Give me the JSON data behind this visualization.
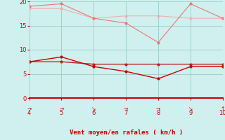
{
  "x": [
    4,
    5,
    6,
    7,
    8,
    9,
    10
  ],
  "line_rafales_vary": [
    19.0,
    19.5,
    16.5,
    15.5,
    11.5,
    19.5,
    16.5
  ],
  "line_rafales_flat": [
    18.5,
    18.5,
    16.5,
    17.0,
    17.0,
    16.5,
    16.5
  ],
  "line_moyen_vary": [
    7.5,
    8.5,
    6.5,
    5.5,
    4.0,
    6.5,
    6.5
  ],
  "line_moyen_flat": [
    7.5,
    7.5,
    7.0,
    7.0,
    7.0,
    7.0,
    7.0
  ],
  "color_rafales_vary": "#e87878",
  "color_rafales_flat": "#f0b0b0",
  "color_moyen_vary": "#cc0000",
  "color_moyen_flat": "#bb2222",
  "bg_color": "#cff0ee",
  "grid_color": "#99cccc",
  "axis_color": "#cc0000",
  "xlabel": "Vent moyen/en rafales ( km/h )",
  "xlim": [
    4,
    10
  ],
  "ylim": [
    0,
    20
  ],
  "yticks": [
    0,
    5,
    10,
    15,
    20
  ],
  "xticks": [
    4,
    5,
    6,
    7,
    8,
    9,
    10
  ],
  "arrow_labels": [
    "→",
    "→",
    "↘",
    "→",
    "→",
    "↘",
    "↑"
  ]
}
